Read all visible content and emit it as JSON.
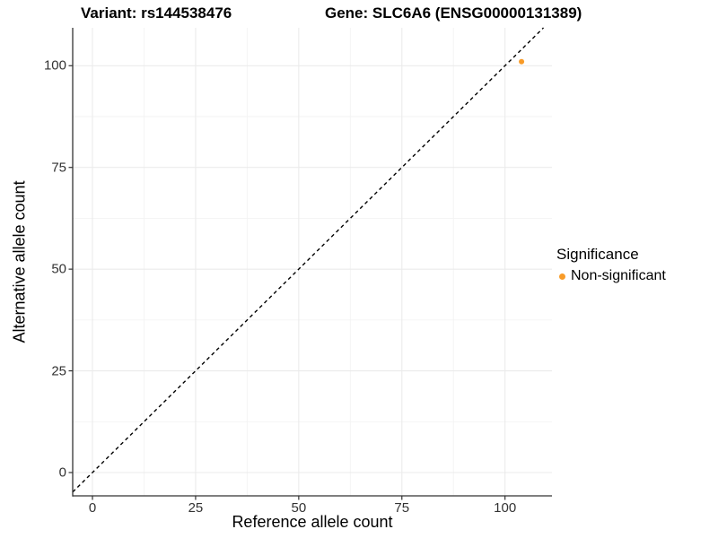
{
  "titles": {
    "left": "Variant: rs144538476",
    "right": "Gene: SLC6A6 (ENSG00000131389)"
  },
  "chart_data": {
    "type": "scatter",
    "xlabel": "Reference allele count",
    "ylabel": "Alternative allele count",
    "x_ticks": [
      0,
      25,
      50,
      75,
      100
    ],
    "y_ticks": [
      0,
      25,
      50,
      75,
      100
    ],
    "x_minor": [
      12.5,
      37.5,
      62.5,
      87.5
    ],
    "y_minor": [
      12.5,
      37.5,
      62.5,
      87.5
    ],
    "xlim": [
      -4.79,
      111.38
    ],
    "ylim": [
      -5.73,
      109.32
    ],
    "grid": true,
    "legend_position": "right",
    "identity_line": {
      "equation": "y = x",
      "style": "dashed",
      "color": "#000000"
    },
    "points": [
      {
        "x": 104,
        "y": 101,
        "series": "Non-significant",
        "color": "#F89B28"
      }
    ]
  },
  "legend": {
    "title": "Significance",
    "items": [
      {
        "label": "Non-significant",
        "color": "#F89B28"
      }
    ]
  },
  "colors": {
    "background": "#FFFFFF",
    "grid_major": "#EBEBEB",
    "grid_minor": "#F3F3F3",
    "axis_line": "#333333",
    "tick_mark": "#333333",
    "tick_label": "#333333",
    "title_text": "#000000"
  }
}
